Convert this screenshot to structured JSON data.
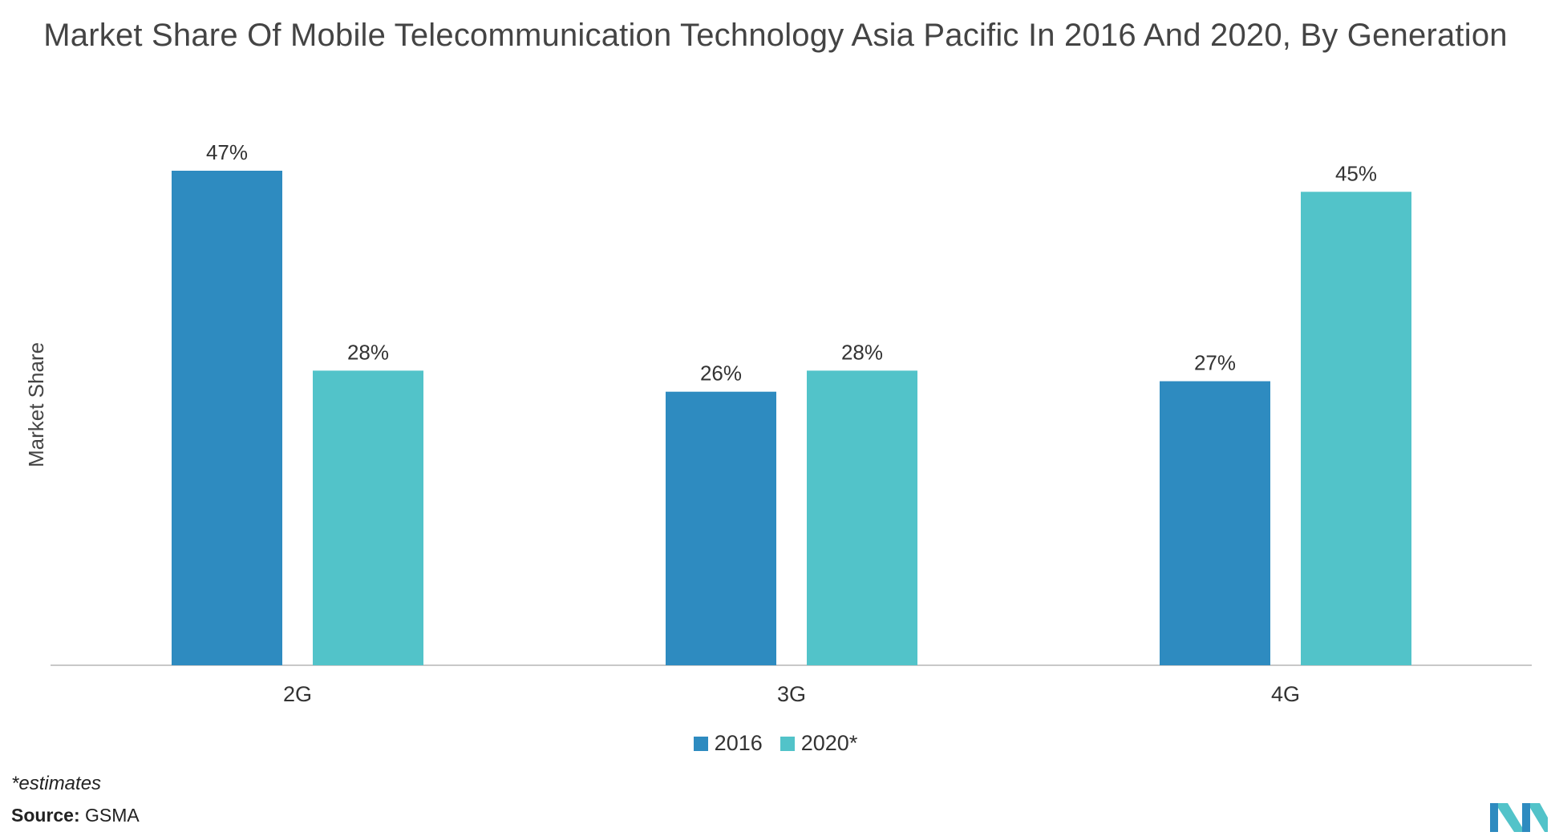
{
  "chart_data": {
    "type": "bar",
    "title": "Market Share Of Mobile Telecommunication Technology Asia Pacific In 2016 And 2020, By Generation",
    "xlabel": "",
    "ylabel": "Market Share",
    "categories": [
      "2G",
      "3G",
      "4G"
    ],
    "series": [
      {
        "name": "2016",
        "values": [
          47,
          26,
          27
        ],
        "labels": [
          "47%",
          "26%",
          "27%"
        ],
        "color": "#2e8bc0"
      },
      {
        "name": "2020*",
        "values": [
          28,
          28,
          45
        ],
        "labels": [
          "28%",
          "28%",
          "45%"
        ],
        "color": "#52c3c9"
      }
    ],
    "ylim": [
      0,
      50
    ],
    "grid": false,
    "legend": "bottom-center"
  },
  "footnote": "*estimates",
  "source": {
    "label": "Source:",
    "value": "GSMA"
  },
  "logo_icon": "mordor-intelligence-logo-icon"
}
